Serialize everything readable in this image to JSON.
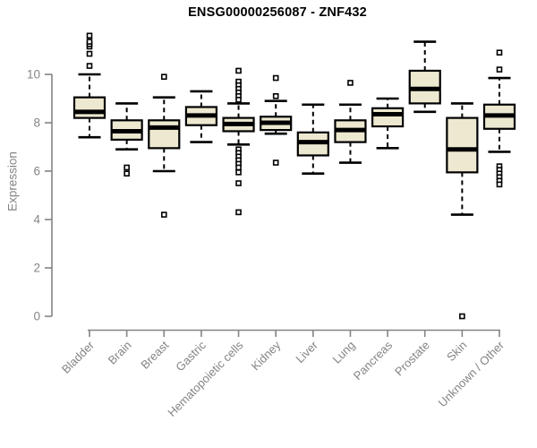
{
  "chart_data": {
    "type": "boxplot",
    "title": "ENSG00000256087 - ZNF432",
    "xlabel": "",
    "ylabel": "Expression",
    "yticks": [
      0,
      2,
      4,
      6,
      8,
      10
    ],
    "ylim": [
      0,
      11.7
    ],
    "grid": false,
    "box_fill_color": "#EDE8D0",
    "box_stroke_color": "#000000",
    "axis_color": "#848484",
    "categories": [
      "Bladder",
      "Brain",
      "Breast",
      "Gastric",
      "Hematopoietic cells",
      "Kidney",
      "Liver",
      "Lung",
      "Pancreas",
      "Prostate",
      "Skin",
      "Unknown / Other"
    ],
    "series": [
      {
        "name": "Bladder",
        "whisker_low": 7.4,
        "q1": 8.2,
        "median": 8.45,
        "q3": 9.05,
        "whisker_high": 10.0,
        "outliers": [
          10.35,
          10.85,
          11.15,
          11.25,
          11.35,
          11.6
        ]
      },
      {
        "name": "Brain",
        "whisker_low": 6.9,
        "q1": 7.3,
        "median": 7.65,
        "q3": 8.1,
        "whisker_high": 8.8,
        "outliers": [
          6.15,
          5.9
        ]
      },
      {
        "name": "Breast",
        "whisker_low": 6.0,
        "q1": 6.95,
        "median": 7.8,
        "q3": 8.1,
        "whisker_high": 9.05,
        "outliers": [
          9.9,
          4.2
        ]
      },
      {
        "name": "Gastric",
        "whisker_low": 7.2,
        "q1": 7.9,
        "median": 8.3,
        "q3": 8.65,
        "whisker_high": 9.3,
        "outliers": []
      },
      {
        "name": "Hematopoietic cells",
        "whisker_low": 7.1,
        "q1": 7.65,
        "median": 7.95,
        "q3": 8.2,
        "whisker_high": 8.8,
        "outliers": [
          10.15,
          9.7,
          9.55,
          9.4,
          9.25,
          9.1,
          8.95,
          6.9,
          6.75,
          6.6,
          6.45,
          6.3,
          6.15,
          5.95,
          5.5,
          4.3
        ]
      },
      {
        "name": "Kidney",
        "whisker_low": 7.55,
        "q1": 7.7,
        "median": 8.0,
        "q3": 8.25,
        "whisker_high": 8.9,
        "outliers": [
          9.85,
          9.1,
          6.35
        ]
      },
      {
        "name": "Liver",
        "whisker_low": 5.9,
        "q1": 6.65,
        "median": 7.2,
        "q3": 7.6,
        "whisker_high": 8.75,
        "outliers": []
      },
      {
        "name": "Lung",
        "whisker_low": 6.35,
        "q1": 7.2,
        "median": 7.7,
        "q3": 8.1,
        "whisker_high": 8.75,
        "outliers": [
          9.65
        ]
      },
      {
        "name": "Pancreas",
        "whisker_low": 6.95,
        "q1": 7.85,
        "median": 8.35,
        "q3": 8.6,
        "whisker_high": 9.0,
        "outliers": []
      },
      {
        "name": "Prostate",
        "whisker_low": 8.45,
        "q1": 8.8,
        "median": 9.4,
        "q3": 10.15,
        "whisker_high": 11.35,
        "outliers": []
      },
      {
        "name": "Skin",
        "whisker_low": 4.2,
        "q1": 5.95,
        "median": 6.9,
        "q3": 8.2,
        "whisker_high": 8.8,
        "outliers": [
          0.0
        ]
      },
      {
        "name": "Unknown / Other",
        "whisker_low": 6.8,
        "q1": 7.75,
        "median": 8.3,
        "q3": 8.75,
        "whisker_high": 9.85,
        "outliers": [
          10.9,
          10.2,
          6.2,
          6.05,
          5.9,
          5.75,
          5.6,
          5.45
        ]
      }
    ]
  }
}
